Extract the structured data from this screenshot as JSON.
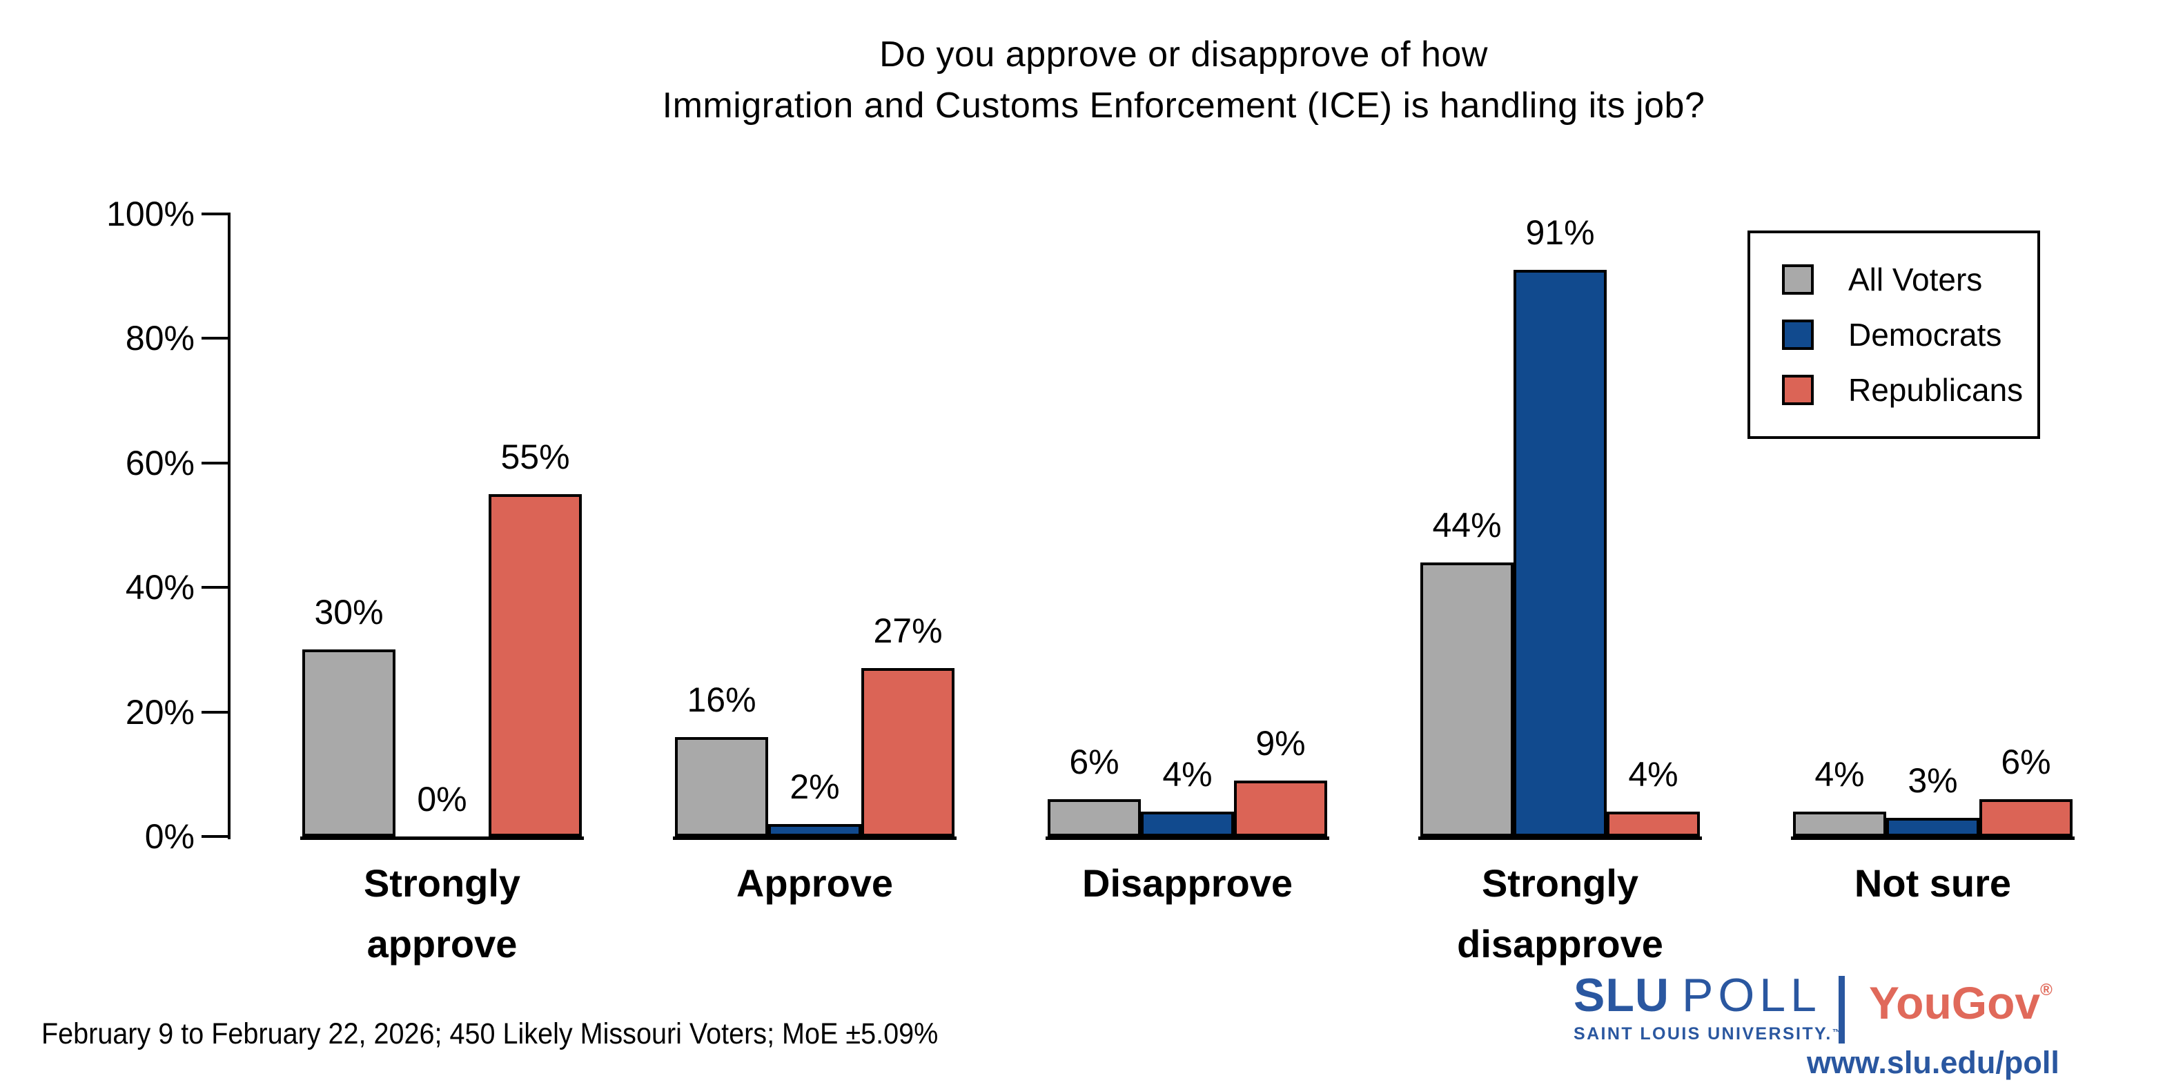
{
  "title": {
    "line1": "Do you approve or disapprove of how",
    "line2": "Immigration and Customs Enforcement (ICE) is handling its job?"
  },
  "chart_data": {
    "type": "bar",
    "categories": [
      "Strongly approve",
      "Approve",
      "Disapprove",
      "Strongly disapprove",
      "Not sure"
    ],
    "category_lines": [
      [
        "Strongly",
        "approve"
      ],
      [
        "Approve"
      ],
      [
        "Disapprove"
      ],
      [
        "Strongly",
        "disapprove"
      ],
      [
        "Not sure"
      ]
    ],
    "series": [
      {
        "name": "All Voters",
        "color": "#a9a9a9",
        "values": [
          30,
          16,
          6,
          44,
          4
        ]
      },
      {
        "name": "Democrats",
        "color": "#114a8e",
        "values": [
          0,
          2,
          4,
          91,
          3
        ]
      },
      {
        "name": "Republicans",
        "color": "#db6456",
        "values": [
          55,
          27,
          9,
          4,
          6
        ]
      }
    ],
    "value_label_suffix": "%",
    "yticks": [
      "0%",
      "20%",
      "40%",
      "60%",
      "80%",
      "100%"
    ],
    "ylim": [
      0,
      100
    ],
    "xlabel": "",
    "ylabel": "",
    "grid": false,
    "legend_position": "top-right",
    "bar_outline_color": "#000000"
  },
  "footer": {
    "note": "February 9 to February 22, 2026; 450 Likely Missouri Voters; MoE ±5.09%"
  },
  "branding": {
    "slu": {
      "acronym": "SLU",
      "word": "POLL",
      "subtitle": "SAINT LOUIS UNIVERSITY.",
      "trademark": "™",
      "color": "#2a57a0"
    },
    "yougov": {
      "name": "YouGov",
      "registered": "®",
      "color": "#e0695a"
    },
    "url": "www.slu.edu/poll"
  }
}
